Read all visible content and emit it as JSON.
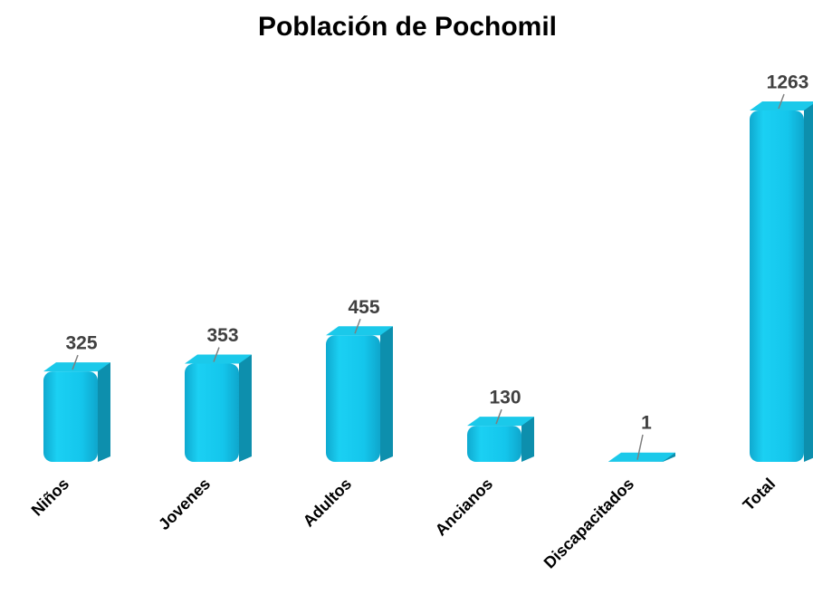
{
  "chart_data": {
    "type": "bar",
    "title": "Población de Pochomil",
    "categories": [
      "Niños",
      "Jovenes",
      "Adultos",
      "Ancianos",
      "Discapacitados",
      "Total"
    ],
    "values": [
      325,
      353,
      455,
      130,
      1,
      1263
    ],
    "color": "#14c6ec"
  }
}
